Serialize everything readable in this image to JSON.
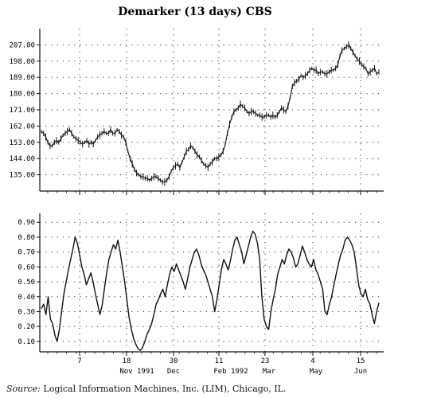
{
  "chart_data": [
    {
      "type": "line",
      "title": "Demarker (13 days) CBS",
      "ylim": [
        126,
        216
      ],
      "yticks": [
        "207.00",
        "198.00",
        "189.00",
        "180.00",
        "171.00",
        "162.00",
        "153.00",
        "144.00",
        "135.00"
      ],
      "grid": true,
      "series": [
        {
          "values": [
            159,
            158,
            156,
            153,
            151,
            151,
            153,
            154,
            153,
            155,
            157,
            158,
            159,
            160,
            158,
            156,
            155,
            154,
            153,
            152,
            153,
            154,
            152,
            153,
            152,
            154,
            156,
            157,
            158,
            159,
            158,
            158,
            160,
            158,
            158,
            160,
            159,
            157,
            156,
            153,
            148,
            144,
            141,
            138,
            136,
            135,
            134,
            134,
            133,
            133,
            132,
            133,
            134,
            134,
            133,
            132,
            131,
            131,
            132,
            134,
            137,
            139,
            140,
            141,
            139,
            142,
            145,
            148,
            149,
            151,
            150,
            148,
            146,
            145,
            143,
            141,
            140,
            139,
            141,
            142,
            144,
            144,
            145,
            146,
            148,
            152,
            158,
            163,
            167,
            170,
            171,
            172,
            174,
            173,
            172,
            170,
            169,
            170,
            170,
            169,
            168,
            168,
            167,
            167,
            168,
            168,
            167,
            168,
            167,
            168,
            170,
            172,
            171,
            170,
            173,
            178,
            184,
            186,
            187,
            188,
            190,
            189,
            190,
            191,
            193,
            194,
            193,
            193,
            191,
            192,
            192,
            191,
            191,
            192,
            193,
            193,
            194,
            196,
            201,
            204,
            205,
            206,
            207,
            205,
            203,
            201,
            199,
            198,
            196,
            195,
            194,
            191,
            192,
            193,
            194,
            191,
            192
          ]
        }
      ]
    },
    {
      "type": "line",
      "ylim": [
        0.03,
        0.96
      ],
      "yticks": [
        "0.90",
        "0.80",
        "0.70",
        "0.60",
        "0.50",
        "0.40",
        "0.30",
        "0.20",
        "0.10"
      ],
      "grid": true,
      "x_tick_labels": [
        "7",
        "18",
        "30",
        "11",
        "23",
        "4",
        "15"
      ],
      "x_month_labels": [
        "Nov 1991",
        "Dec",
        "Feb 1992",
        "Mar",
        "May",
        "Jun"
      ],
      "series": [
        {
          "values": [
            0.32,
            0.35,
            0.28,
            0.4,
            0.25,
            0.22,
            0.14,
            0.1,
            0.18,
            0.3,
            0.42,
            0.5,
            0.58,
            0.65,
            0.72,
            0.8,
            0.76,
            0.68,
            0.6,
            0.55,
            0.48,
            0.52,
            0.56,
            0.5,
            0.42,
            0.35,
            0.28,
            0.34,
            0.45,
            0.56,
            0.65,
            0.7,
            0.75,
            0.72,
            0.78,
            0.7,
            0.6,
            0.5,
            0.38,
            0.26,
            0.18,
            0.12,
            0.08,
            0.05,
            0.04,
            0.06,
            0.1,
            0.15,
            0.18,
            0.22,
            0.28,
            0.35,
            0.38,
            0.42,
            0.45,
            0.4,
            0.48,
            0.55,
            0.6,
            0.57,
            0.62,
            0.58,
            0.54,
            0.5,
            0.45,
            0.52,
            0.6,
            0.65,
            0.7,
            0.72,
            0.68,
            0.62,
            0.58,
            0.55,
            0.5,
            0.45,
            0.4,
            0.3,
            0.38,
            0.48,
            0.58,
            0.65,
            0.62,
            0.58,
            0.64,
            0.72,
            0.78,
            0.8,
            0.75,
            0.7,
            0.62,
            0.68,
            0.74,
            0.8,
            0.84,
            0.82,
            0.76,
            0.65,
            0.4,
            0.25,
            0.2,
            0.18,
            0.3,
            0.38,
            0.45,
            0.55,
            0.6,
            0.65,
            0.62,
            0.68,
            0.72,
            0.7,
            0.66,
            0.6,
            0.62,
            0.68,
            0.74,
            0.7,
            0.65,
            0.62,
            0.6,
            0.65,
            0.58,
            0.55,
            0.5,
            0.45,
            0.3,
            0.28,
            0.35,
            0.4,
            0.48,
            0.55,
            0.62,
            0.68,
            0.72,
            0.78,
            0.8,
            0.78,
            0.75,
            0.7,
            0.6,
            0.48,
            0.42,
            0.4,
            0.45,
            0.38,
            0.35,
            0.28,
            0.22,
            0.3,
            0.36
          ]
        }
      ]
    }
  ],
  "source": {
    "label": "Source:",
    "text": "Logical Information Machines, Inc. (LIM), Chicago, IL."
  }
}
